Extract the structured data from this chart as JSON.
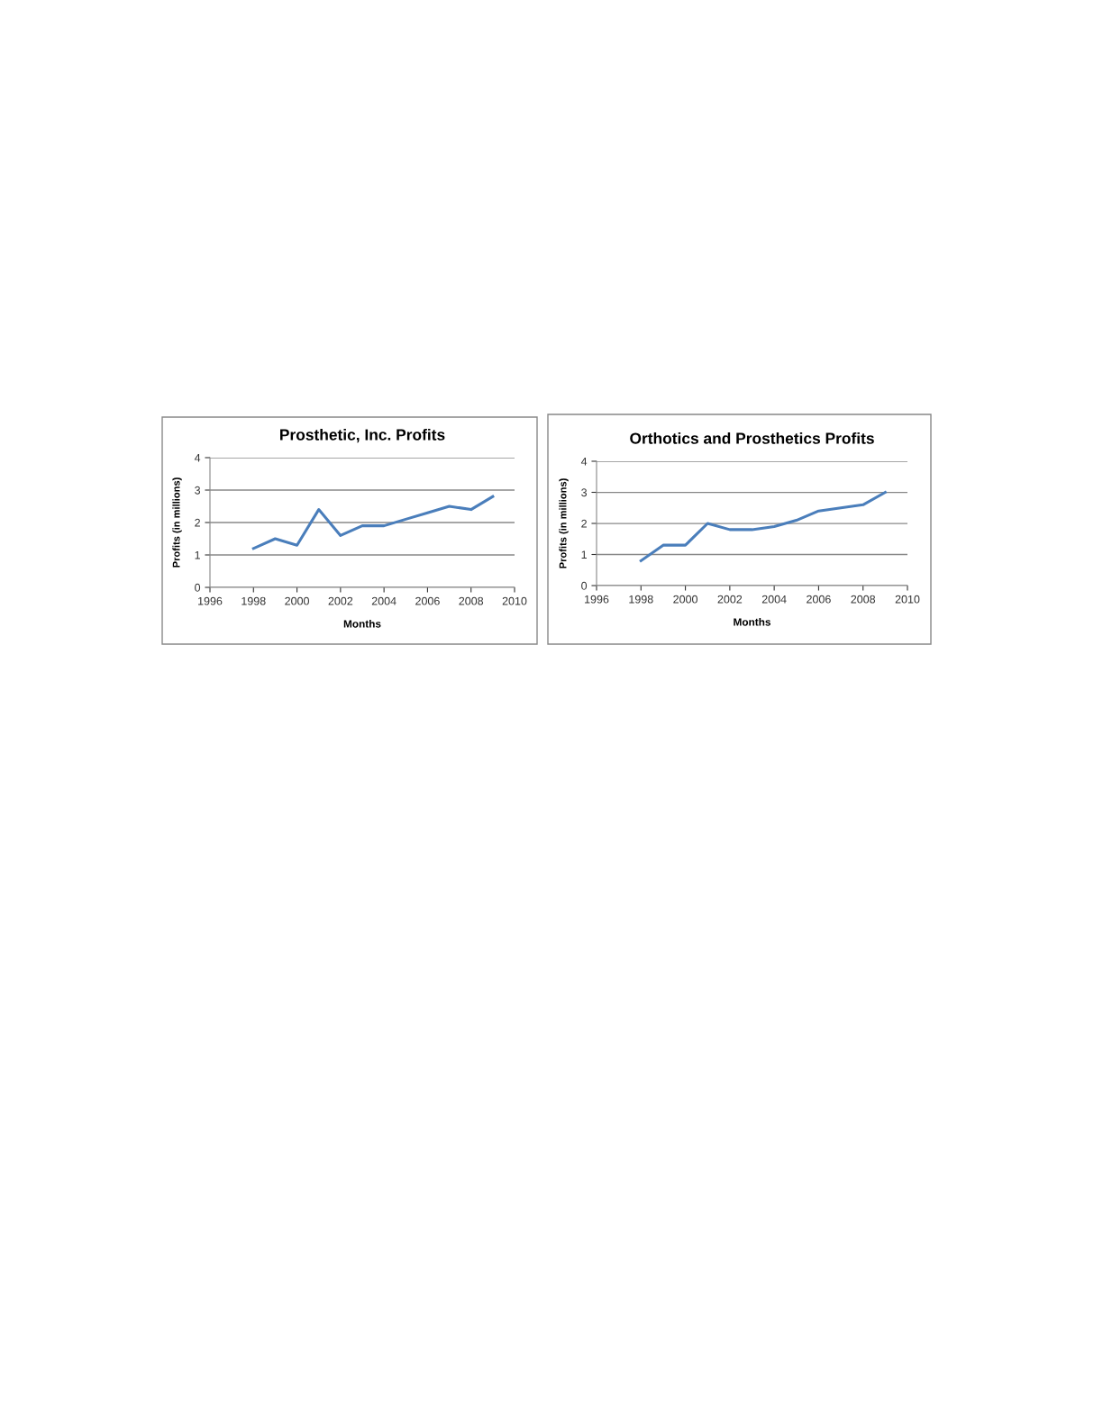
{
  "chart_data": [
    {
      "type": "line",
      "title": "Prosthetic, Inc. Profits",
      "xlabel": "Months",
      "ylabel": "Profits (in millions)",
      "x": [
        1998,
        1999,
        2000,
        2001,
        2002,
        2003,
        2004,
        2005,
        2006,
        2007,
        2008,
        2009
      ],
      "series": [
        {
          "color": "#4a7ebb",
          "values": [
            1.2,
            1.5,
            1.3,
            2.4,
            1.6,
            1.9,
            1.9,
            2.1,
            2.3,
            2.5,
            2.4,
            2.8
          ]
        }
      ],
      "xlim": [
        1996,
        2010
      ],
      "xticks": [
        1996,
        1998,
        2000,
        2002,
        2004,
        2006,
        2008,
        2010
      ],
      "ylim": [
        0,
        4
      ],
      "yticks": [
        0,
        1,
        2,
        3,
        4
      ],
      "grid": "y",
      "legend": false,
      "marker": "none",
      "line_style": "solid"
    },
    {
      "type": "line",
      "title": "Orthotics and Prosthetics Profits",
      "xlabel": "Months",
      "ylabel": "Profits (in millions)",
      "x": [
        1998,
        1999,
        2000,
        2001,
        2002,
        2003,
        2004,
        2005,
        2006,
        2007,
        2008,
        2009
      ],
      "series": [
        {
          "color": "#4a7ebb",
          "values": [
            0.8,
            1.3,
            1.3,
            2.0,
            1.8,
            1.8,
            1.9,
            2.1,
            2.4,
            2.5,
            2.6,
            3.0
          ]
        }
      ],
      "xlim": [
        1996,
        2010
      ],
      "xticks": [
        1996,
        1998,
        2000,
        2002,
        2004,
        2006,
        2008,
        2010
      ],
      "ylim": [
        0,
        4
      ],
      "yticks": [
        0,
        1,
        2,
        3,
        4
      ],
      "grid": "y",
      "legend": false,
      "marker": "none",
      "line_style": "solid"
    }
  ]
}
